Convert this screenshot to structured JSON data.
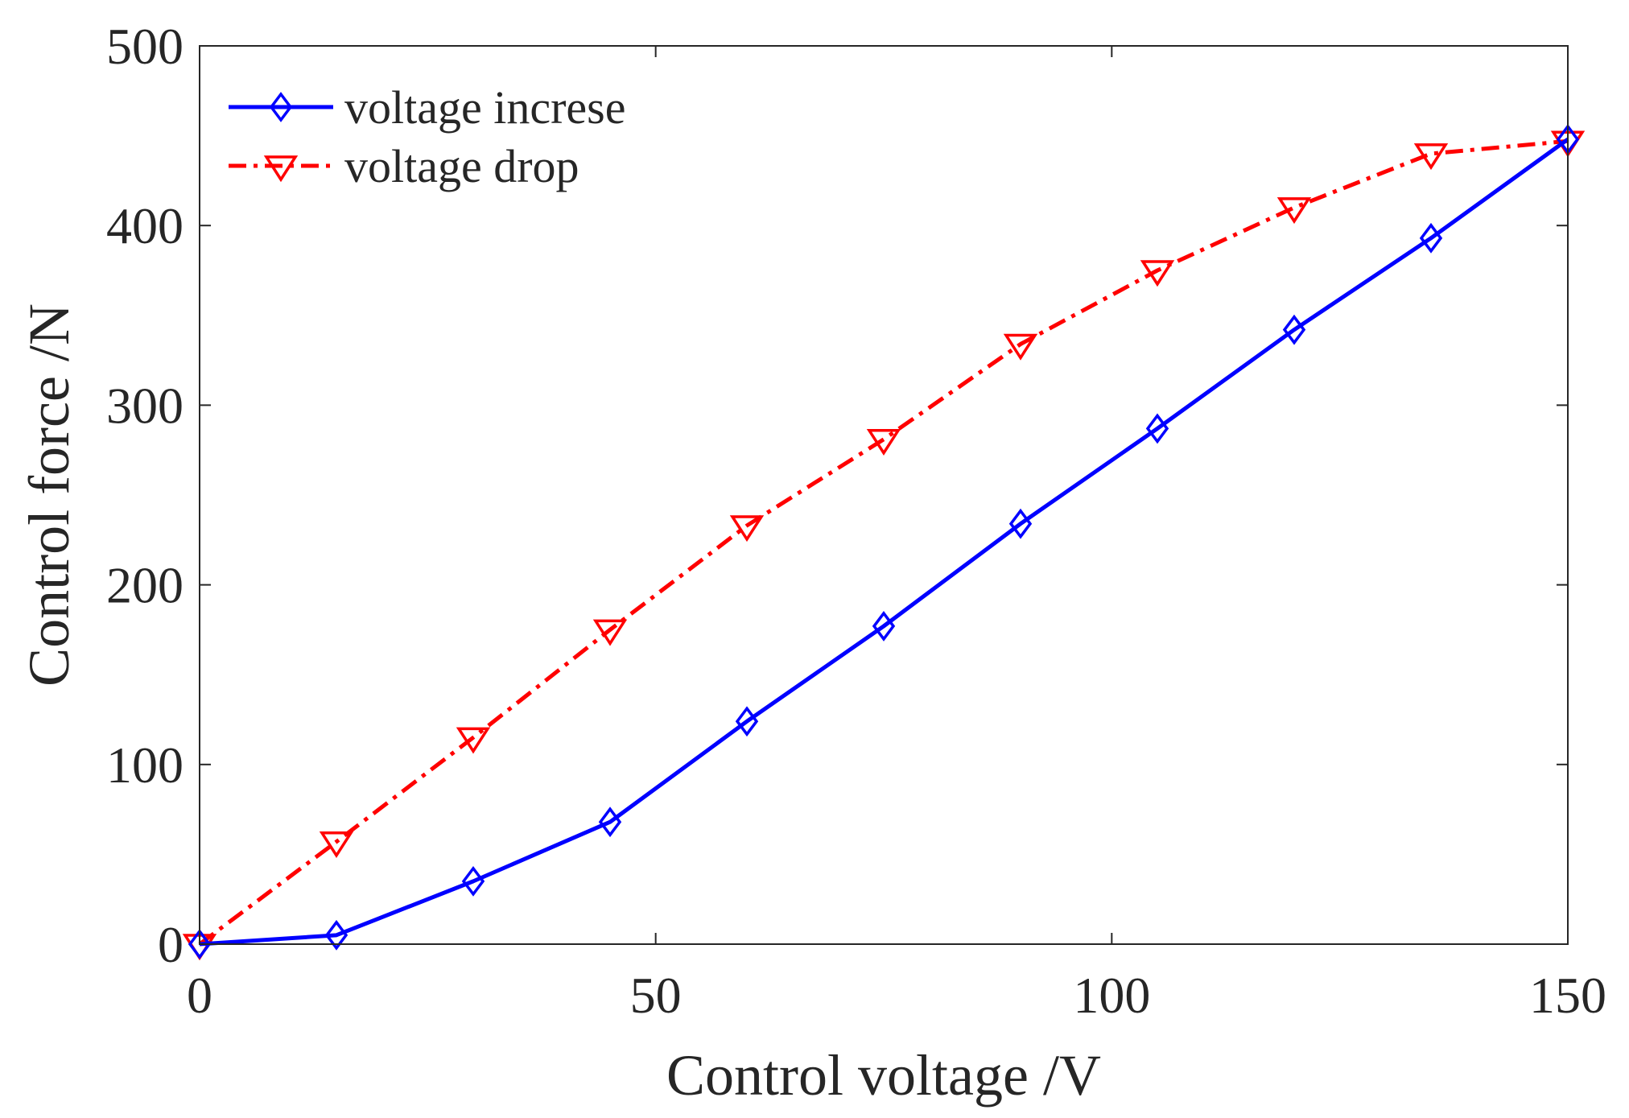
{
  "chart_data": {
    "type": "line",
    "title": "",
    "xlabel": "Control voltage /V",
    "ylabel": "Control force /N",
    "xlim": [
      0,
      150
    ],
    "ylim": [
      0,
      500
    ],
    "xticks": [
      0,
      50,
      100,
      150
    ],
    "yticks": [
      0,
      100,
      200,
      300,
      400,
      500
    ],
    "grid": false,
    "legend_position": "top-left",
    "x": [
      0,
      15,
      30,
      45,
      60,
      75,
      90,
      105,
      120,
      135,
      150
    ],
    "series": [
      {
        "name": "voltage increse",
        "color": "#0000ff",
        "line_style": "solid",
        "marker": "diamond",
        "values": [
          0,
          5,
          35,
          68,
          124,
          177,
          234,
          287,
          342,
          393,
          448
        ]
      },
      {
        "name": "voltage drop",
        "color": "#ff0000",
        "line_style": "dash-dot",
        "marker": "triangle-down",
        "values": [
          0,
          57,
          115,
          175,
          233,
          281,
          334,
          375,
          410,
          440,
          447
        ]
      }
    ]
  }
}
